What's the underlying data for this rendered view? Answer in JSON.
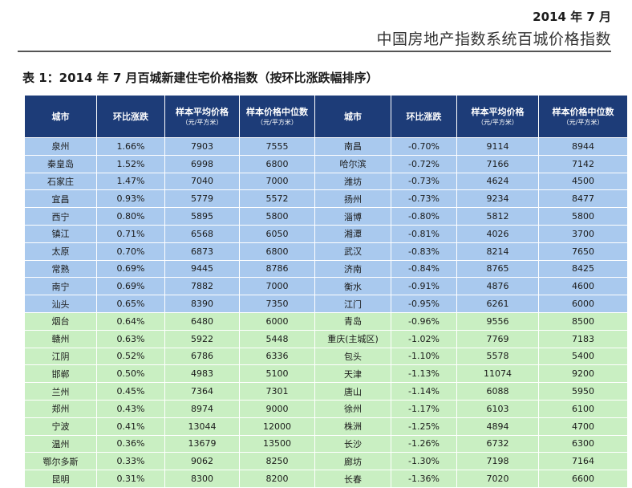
{
  "header": {
    "date": "2014 年 7 月",
    "title": "中国房地产指数系统百城价格指数"
  },
  "caption": {
    "label": "表 1：",
    "text": "2014 年 7 月百城新建住宅价格指数（按环比涨跌幅排序）"
  },
  "table": {
    "columns": [
      {
        "label": "城市",
        "unit": ""
      },
      {
        "label": "环比涨跌",
        "unit": ""
      },
      {
        "label": "样本平均价格",
        "unit": "（元/平方米）"
      },
      {
        "label": "样本价格中位数",
        "unit": "（元/平方米）"
      },
      {
        "label": "城市",
        "unit": ""
      },
      {
        "label": "环比涨跌",
        "unit": ""
      },
      {
        "label": "样本平均价格",
        "unit": "（元/平方米）"
      },
      {
        "label": "样本价格中位数",
        "unit": "（元/平方米）"
      }
    ],
    "row_colors": {
      "blue": "#a9c9ee",
      "green": "#c9efc2",
      "header": "#1d3c78"
    },
    "rows": [
      {
        "band": "blue",
        "cells": [
          "泉州",
          "1.66%",
          "7903",
          "7555",
          "南昌",
          "-0.70%",
          "9114",
          "8944"
        ]
      },
      {
        "band": "blue",
        "cells": [
          "秦皇岛",
          "1.52%",
          "6998",
          "6800",
          "哈尔滨",
          "-0.72%",
          "7166",
          "7142"
        ]
      },
      {
        "band": "blue",
        "cells": [
          "石家庄",
          "1.47%",
          "7040",
          "7000",
          "潍坊",
          "-0.73%",
          "4624",
          "4500"
        ]
      },
      {
        "band": "blue",
        "cells": [
          "宜昌",
          "0.93%",
          "5779",
          "5572",
          "扬州",
          "-0.73%",
          "9234",
          "8477"
        ]
      },
      {
        "band": "blue",
        "cells": [
          "西宁",
          "0.80%",
          "5895",
          "5800",
          "淄博",
          "-0.80%",
          "5812",
          "5800"
        ]
      },
      {
        "band": "blue",
        "cells": [
          "镇江",
          "0.71%",
          "6568",
          "6050",
          "湘潭",
          "-0.81%",
          "4026",
          "3700"
        ]
      },
      {
        "band": "blue",
        "cells": [
          "太原",
          "0.70%",
          "6873",
          "6800",
          "武汉",
          "-0.83%",
          "8214",
          "7650"
        ]
      },
      {
        "band": "blue",
        "cells": [
          "常熟",
          "0.69%",
          "9445",
          "8786",
          "济南",
          "-0.84%",
          "8765",
          "8425"
        ]
      },
      {
        "band": "blue",
        "cells": [
          "南宁",
          "0.69%",
          "7882",
          "7000",
          "衡水",
          "-0.91%",
          "4876",
          "4600"
        ]
      },
      {
        "band": "blue",
        "cells": [
          "汕头",
          "0.65%",
          "8390",
          "7350",
          "江门",
          "-0.95%",
          "6261",
          "6000"
        ]
      },
      {
        "band": "green",
        "cells": [
          "烟台",
          "0.64%",
          "6480",
          "6000",
          "青岛",
          "-0.96%",
          "9556",
          "8500"
        ]
      },
      {
        "band": "green",
        "cells": [
          "赣州",
          "0.63%",
          "5922",
          "5448",
          "重庆(主城区)",
          "-1.02%",
          "7769",
          "7183"
        ]
      },
      {
        "band": "green",
        "cells": [
          "江阴",
          "0.52%",
          "6786",
          "6336",
          "包头",
          "-1.10%",
          "5578",
          "5400"
        ]
      },
      {
        "band": "green",
        "cells": [
          "邯郸",
          "0.50%",
          "4983",
          "5100",
          "天津",
          "-1.13%",
          "11074",
          "9200"
        ]
      },
      {
        "band": "green",
        "cells": [
          "兰州",
          "0.45%",
          "7364",
          "7301",
          "唐山",
          "-1.14%",
          "6088",
          "5950"
        ]
      },
      {
        "band": "green",
        "cells": [
          "郑州",
          "0.43%",
          "8974",
          "9000",
          "徐州",
          "-1.17%",
          "6103",
          "6100"
        ]
      },
      {
        "band": "green",
        "cells": [
          "宁波",
          "0.41%",
          "13044",
          "12000",
          "株洲",
          "-1.25%",
          "4894",
          "4700"
        ]
      },
      {
        "band": "green",
        "cells": [
          "温州",
          "0.36%",
          "13679",
          "13500",
          "长沙",
          "-1.26%",
          "6732",
          "6300"
        ]
      },
      {
        "band": "green",
        "cells": [
          "鄂尔多斯",
          "0.33%",
          "9062",
          "8250",
          "廊坊",
          "-1.30%",
          "7198",
          "7164"
        ]
      },
      {
        "band": "green",
        "cells": [
          "昆明",
          "0.31%",
          "8300",
          "8200",
          "长春",
          "-1.36%",
          "7020",
          "6600"
        ]
      }
    ]
  }
}
